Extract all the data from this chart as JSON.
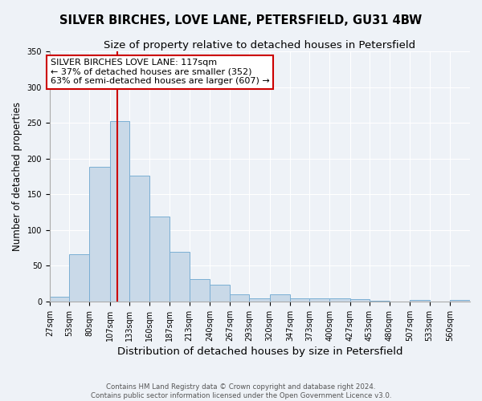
{
  "title": "SILVER BIRCHES, LOVE LANE, PETERSFIELD, GU31 4BW",
  "subtitle": "Size of property relative to detached houses in Petersfield",
  "xlabel": "Distribution of detached houses by size in Petersfield",
  "ylabel": "Number of detached properties",
  "bar_edges": [
    27,
    53,
    80,
    107,
    133,
    160,
    187,
    213,
    240,
    267,
    293,
    320,
    347,
    373,
    400,
    427,
    453,
    480,
    507,
    533,
    560
  ],
  "bar_heights": [
    7,
    66,
    188,
    253,
    176,
    119,
    69,
    31,
    23,
    10,
    4,
    10,
    5,
    4,
    5,
    3,
    1,
    0,
    2,
    0,
    2
  ],
  "bar_color": "#c9d9e8",
  "bar_edge_color": "#7bafd4",
  "vline_x": 117,
  "vline_color": "#cc0000",
  "annotation_text": "SILVER BIRCHES LOVE LANE: 117sqm\n← 37% of detached houses are smaller (352)\n63% of semi-detached houses are larger (607) →",
  "annotation_box_color": "#cc0000",
  "ylim": [
    0,
    350
  ],
  "yticks": [
    0,
    50,
    100,
    150,
    200,
    250,
    300,
    350
  ],
  "title_fontsize": 10.5,
  "subtitle_fontsize": 9.5,
  "xlabel_fontsize": 9.5,
  "ylabel_fontsize": 8.5,
  "tick_fontsize": 7,
  "footer_text": "Contains HM Land Registry data © Crown copyright and database right 2024.\nContains public sector information licensed under the Open Government Licence v3.0.",
  "bg_color": "#eef2f7",
  "plot_bg_color": "#eef2f7",
  "grid_color": "#ffffff",
  "ann_fontsize": 8
}
